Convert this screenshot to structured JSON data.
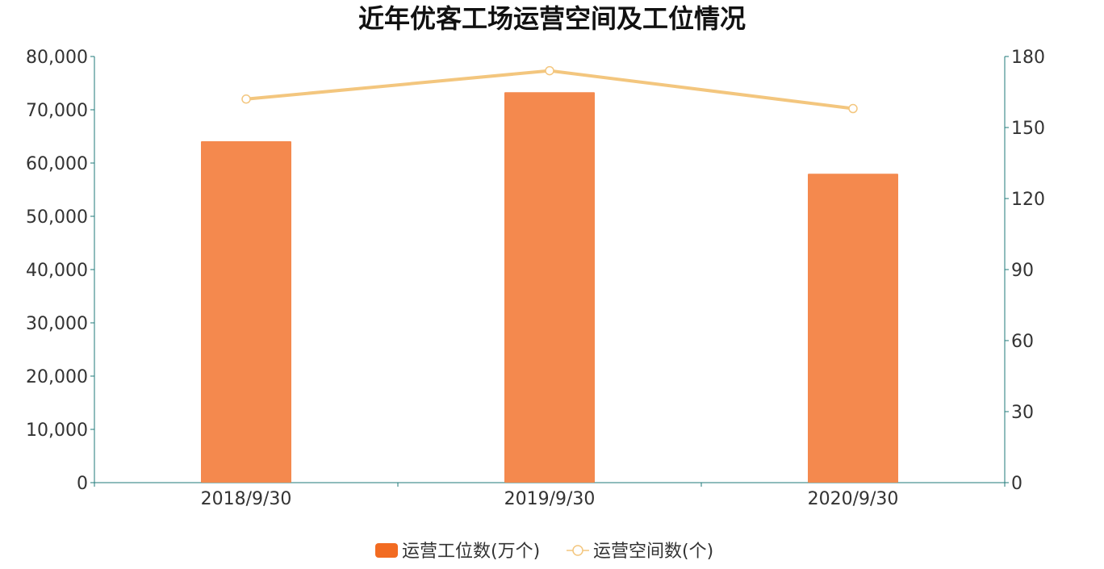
{
  "chart_data": {
    "type": "bar+line",
    "title": "近年优客工场运营空间及工位情况",
    "categories": [
      "2018/9/30",
      "2019/9/30",
      "2020/9/30"
    ],
    "series": [
      {
        "name": "运营工位数(万个)",
        "type": "bar",
        "axis": "left",
        "values": [
          64100,
          73300,
          58000
        ],
        "color": "#F4894E"
      },
      {
        "name": "运营空间数(个)",
        "type": "line",
        "axis": "right",
        "values": [
          162,
          174,
          158
        ],
        "color": "#F3C67E"
      }
    ],
    "y_left": {
      "range": [
        0,
        80000
      ],
      "ticks": [
        "0",
        "10,000",
        "20,000",
        "30,000",
        "40,000",
        "50,000",
        "60,000",
        "70,000",
        "80,000"
      ]
    },
    "y_right": {
      "range": [
        0,
        180
      ],
      "ticks": [
        "0",
        "30",
        "60",
        "90",
        "120",
        "150",
        "180"
      ]
    },
    "axis_color": "#1F7A7A",
    "grid": false,
    "legend_position": "bottom"
  }
}
